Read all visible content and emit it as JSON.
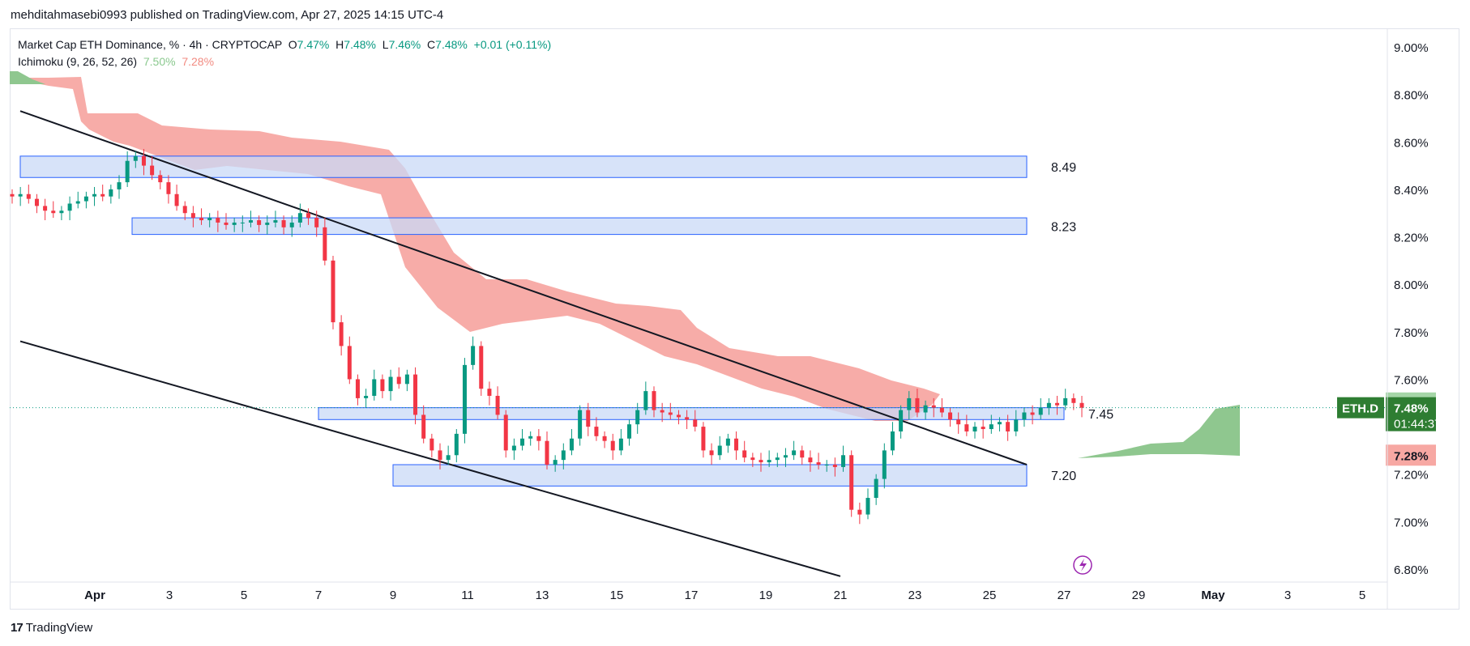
{
  "header": {
    "text": "mehditahmasebi0993 published on TradingView.com, Apr 27, 2025 14:15 UTC-4"
  },
  "legend": {
    "symbol": "Market Cap ETH Dominance, % · 4h · CRYPTOCAP",
    "o_label": "O",
    "o": "7.47%",
    "h_label": "H",
    "h": "7.48%",
    "l_label": "L",
    "l": "7.46%",
    "c_label": "C",
    "c": "7.48%",
    "change": "+0.01 (+0.11%)",
    "indicator": "Ichimoku (9, 26, 52, 26)",
    "ind_val1": "7.50%",
    "ind_val2": "7.28%"
  },
  "footer": {
    "brand": "TradingView",
    "logo_text": "17"
  },
  "colors": {
    "up": "#089981",
    "down": "#f23645",
    "cloud_bear": "#f7a8a3",
    "cloud_bull": "#8fc78f",
    "zone": "#c9d9f7",
    "zone_border": "#2962ff"
  },
  "chart_data": {
    "type": "candlestick",
    "symbol": "ETH.D",
    "timeframe": "4h",
    "y_ticks": [
      "9.00%",
      "8.80%",
      "8.60%",
      "8.40%",
      "8.20%",
      "8.00%",
      "7.80%",
      "7.60%",
      "7.20%",
      "7.00%",
      "6.80%"
    ],
    "x_ticks": [
      "Apr",
      "3",
      "5",
      "7",
      "9",
      "11",
      "13",
      "15",
      "17",
      "19",
      "21",
      "23",
      "25",
      "27",
      "29",
      "May",
      "3",
      "5"
    ],
    "ylim": [
      6.77,
      9.07
    ],
    "zones": [
      {
        "label": "8.49",
        "top": 8.54,
        "bottom": 8.45,
        "x_start": "Mar 30",
        "x_end": "Apr 26"
      },
      {
        "label": "8.23",
        "top": 8.28,
        "bottom": 8.21,
        "x_start": "Apr 2",
        "x_end": "Apr 26"
      },
      {
        "label": "7.45",
        "top": 7.48,
        "bottom": 7.43,
        "x_start": "Apr 7",
        "x_end": "Apr 27"
      },
      {
        "label": "7.20",
        "top": 7.24,
        "bottom": 7.15,
        "x_start": "Apr 9",
        "x_end": "Apr 26"
      }
    ],
    "trendlines": [
      {
        "name": "upper",
        "from": [
          "Mar 30",
          8.73
        ],
        "to": [
          "Apr 26",
          7.24
        ]
      },
      {
        "name": "lower",
        "from": [
          "Mar 30",
          7.76
        ],
        "to": [
          "Apr 21",
          6.77
        ]
      }
    ],
    "current": {
      "label": "ETH.D",
      "price": "7.48%",
      "countdown": "01:44:37",
      "value": 7.48
    },
    "cloud_labels": [
      {
        "text": "7.50%",
        "value": 7.5
      },
      {
        "text": "7.28%",
        "value": 7.28
      }
    ],
    "closes": [
      8.37,
      8.38,
      8.36,
      8.33,
      8.31,
      8.3,
      8.31,
      8.34,
      8.35,
      8.37,
      8.38,
      8.37,
      8.4,
      8.43,
      8.52,
      8.54,
      8.5,
      8.46,
      8.43,
      8.38,
      8.33,
      8.3,
      8.28,
      8.27,
      8.28,
      8.26,
      8.25,
      8.26,
      8.26,
      8.27,
      8.25,
      8.26,
      8.27,
      8.24,
      8.26,
      8.3,
      8.28,
      8.24,
      8.1,
      7.84,
      7.74,
      7.6,
      7.52,
      7.53,
      7.6,
      7.55,
      7.61,
      7.58,
      7.62,
      7.45,
      7.35,
      7.3,
      7.26,
      7.28,
      7.37,
      7.66,
      7.74,
      7.56,
      7.53,
      7.45,
      7.3,
      7.32,
      7.35,
      7.36,
      7.34,
      7.24,
      7.26,
      7.3,
      7.35,
      7.47,
      7.4,
      7.36,
      7.34,
      7.3,
      7.35,
      7.41,
      7.47,
      7.55,
      7.47,
      7.46,
      7.45,
      7.44,
      7.43,
      7.4,
      7.3,
      7.28,
      7.32,
      7.35,
      7.3,
      7.27,
      7.26,
      7.25,
      7.26,
      7.27,
      7.28,
      7.3,
      7.27,
      7.25,
      7.24,
      7.24,
      7.23,
      7.28,
      7.05,
      7.03,
      7.1,
      7.18,
      7.3,
      7.38,
      7.47,
      7.52,
      7.46,
      7.49,
      7.48,
      7.46,
      7.43,
      7.41,
      7.38,
      7.4,
      7.39,
      7.41,
      7.42,
      7.38,
      7.43,
      7.46,
      7.45,
      7.48,
      7.5,
      7.49,
      7.52,
      7.5,
      7.48
    ]
  }
}
